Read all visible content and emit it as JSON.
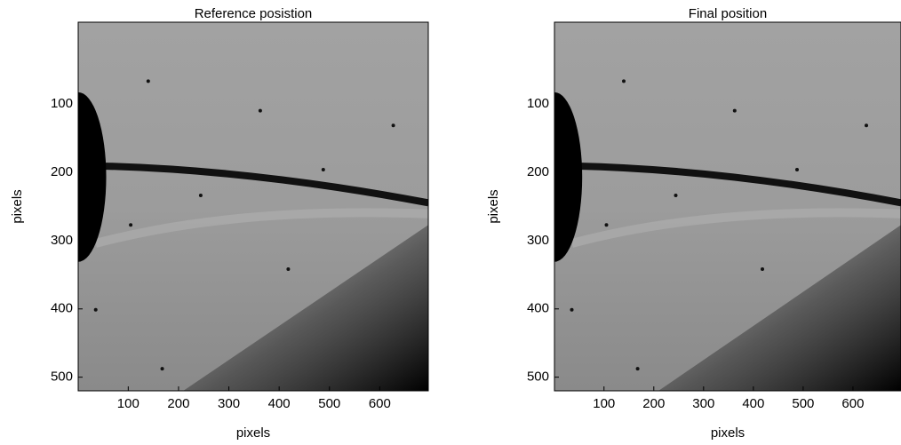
{
  "chart_data": [
    {
      "type": "image",
      "title": "Reference posistion",
      "xlabel": "pixels",
      "ylabel": "pixels",
      "xlim": [
        0.5,
        696.5
      ],
      "ylim": [
        -20,
        520
      ],
      "y_reversed": true,
      "xticks": [
        100,
        200,
        300,
        400,
        500,
        600
      ],
      "yticks": [
        100,
        200,
        300,
        400,
        500
      ]
    },
    {
      "type": "image",
      "title": "Final position",
      "xlabel": "pixels",
      "ylabel": "pixels",
      "xlim": [
        0.5,
        696.5
      ],
      "ylim": [
        -20,
        520
      ],
      "y_reversed": true,
      "xticks": [
        100,
        200,
        300,
        400,
        500,
        600
      ],
      "yticks": [
        100,
        200,
        300,
        400,
        500
      ]
    }
  ]
}
